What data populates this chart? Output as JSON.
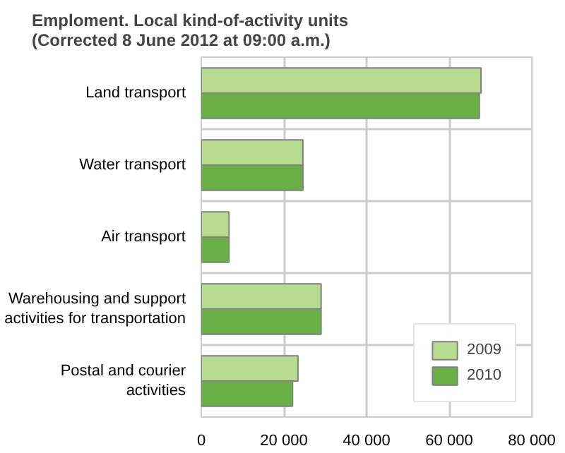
{
  "chart_data": {
    "type": "bar",
    "orientation": "horizontal",
    "title": "Emploment. Local kind-of-activity units\n(Corrected 8 June 2012 at 09:00 a.m.)",
    "categories": [
      "Land transport",
      "Water transport",
      "Air transport",
      "Warehousing and support\nactivities for transportation",
      "Postal and courier\nactivities"
    ],
    "series": [
      {
        "name": "2009",
        "color": "#b8dc8f",
        "values": [
          67700,
          24600,
          6700,
          29000,
          23400
        ]
      },
      {
        "name": "2010",
        "color": "#6ab046",
        "values": [
          67300,
          24600,
          6700,
          29000,
          22100
        ]
      }
    ],
    "xlim": [
      0,
      80000
    ],
    "xticks": [
      0,
      {
        "value": 20000,
        "label": "20 000"
      },
      {
        "value": 40000,
        "label": "40 000"
      },
      {
        "value": 60000,
        "label": "60 000"
      },
      {
        "value": 80000,
        "label": "80 000"
      }
    ],
    "grid": true,
    "legend": "bottom right"
  }
}
